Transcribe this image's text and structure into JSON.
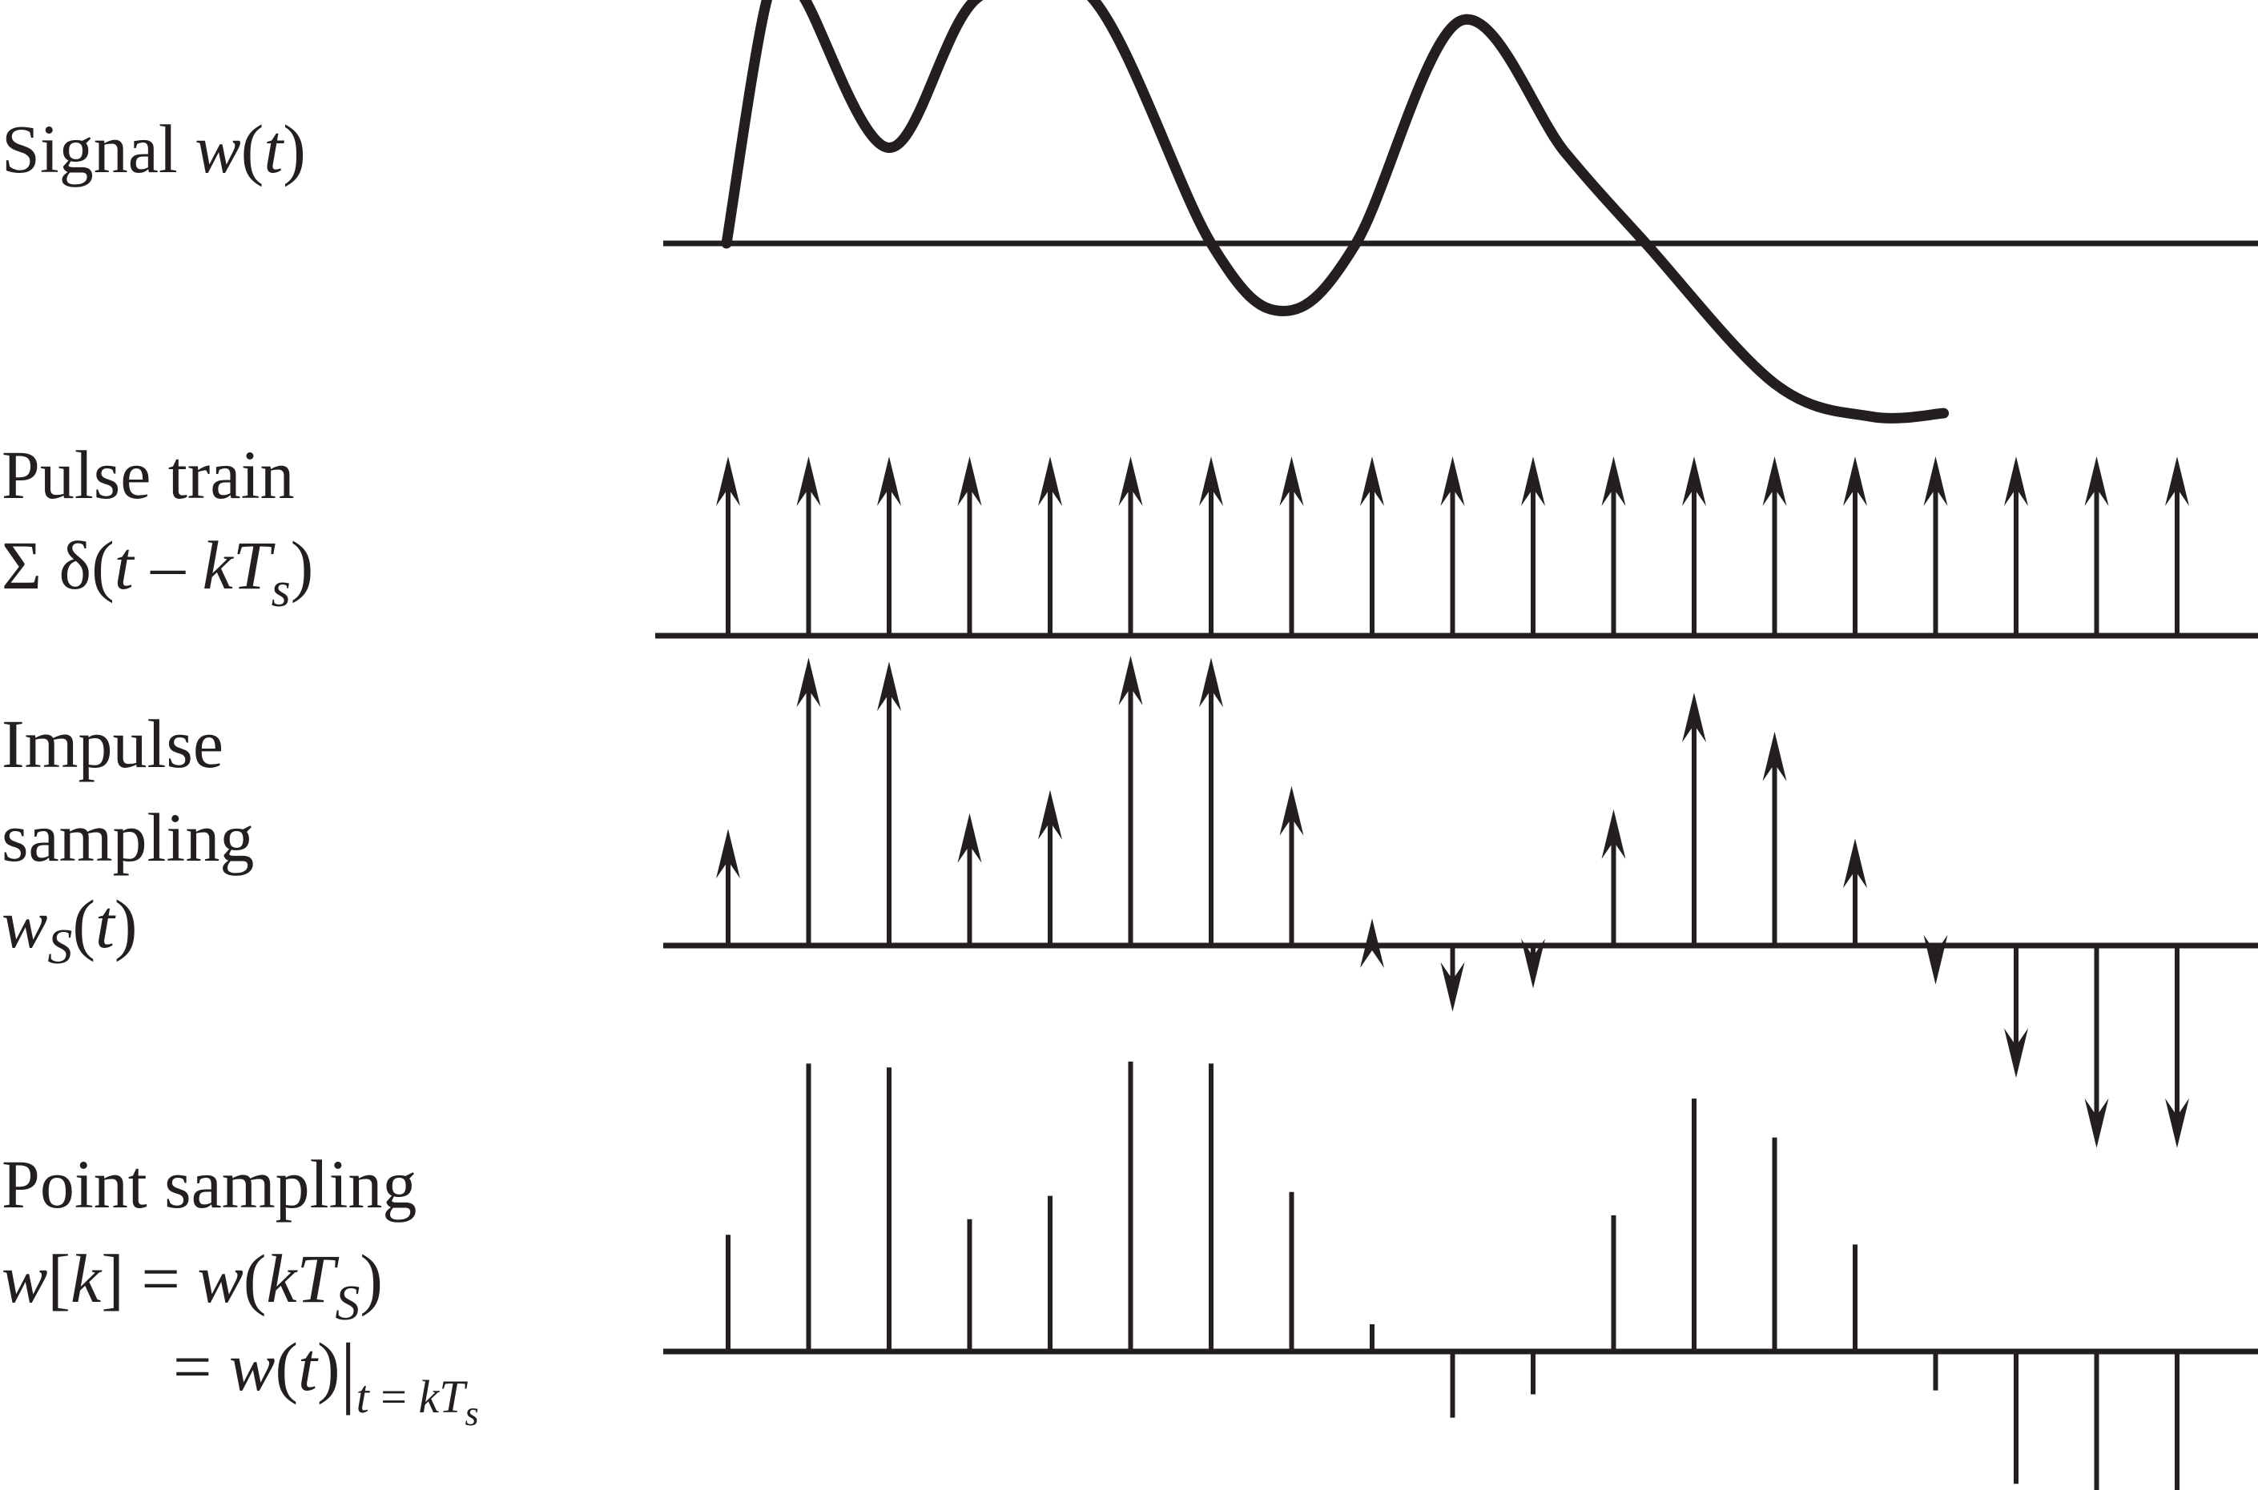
{
  "colors": {
    "ink": "#231f20",
    "background": "#ffffff"
  },
  "labels": {
    "signal": {
      "text": "Signal ",
      "var": "w",
      "arg_open": "(",
      "arg": "t",
      "arg_close": ")"
    },
    "pulse": {
      "line1": "Pulse train",
      "sum": "Σ δ(",
      "t": "t",
      "minus": " – ",
      "k": "k",
      "T": "T",
      "s": "s",
      "close": ")"
    },
    "impulse": {
      "line1": "Impulse",
      "line2": "sampling",
      "var": "w",
      "sub": "S",
      "arg_open": "(",
      "arg": "t",
      "arg_close": ")"
    },
    "point": {
      "line1": "Point sampling",
      "w": "w",
      "open_br": "[",
      "k": "k",
      "close_br": "]",
      "eq": " = ",
      "w2": "w",
      "open_par": "(",
      "kT_k": "k",
      "kT_T": "T",
      "kT_s": "S",
      "close_par": ")",
      "eq2": "= ",
      "w3": "w",
      "par_t": "(",
      "t": "t",
      "par_close": ")",
      "bar": "|",
      "eval_t": "t",
      "eval_eq": " = ",
      "eval_k": "k",
      "eval_T": "T",
      "eval_s": "s"
    }
  },
  "chart_data": {
    "type": "diagram",
    "sample_count": 19,
    "samples": [
      0.6,
      1.48,
      1.46,
      0.68,
      0.8,
      1.49,
      1.48,
      0.82,
      0.14,
      -0.34,
      -0.22,
      0.7,
      1.3,
      1.1,
      0.55,
      -0.2,
      -0.68,
      -1.04,
      -1.04
    ],
    "signal": {
      "description": "continuous waveform w(t)",
      "points": [
        [
          -0.02,
          0.0
        ],
        [
          0.5,
          1.51
        ],
        [
          0.9,
          1.52
        ],
        [
          2.0,
          0.58
        ],
        [
          3.1,
          1.49
        ],
        [
          4.5,
          1.5
        ],
        [
          6.0,
          0.0
        ],
        [
          6.9,
          -0.41
        ],
        [
          7.8,
          0.0
        ],
        [
          9.1,
          1.35
        ],
        [
          10.4,
          0.55
        ],
        [
          11.4,
          0.0
        ],
        [
          13.0,
          -0.85
        ],
        [
          14.2,
          -1.05
        ],
        [
          15.1,
          -1.03
        ]
      ]
    }
  }
}
